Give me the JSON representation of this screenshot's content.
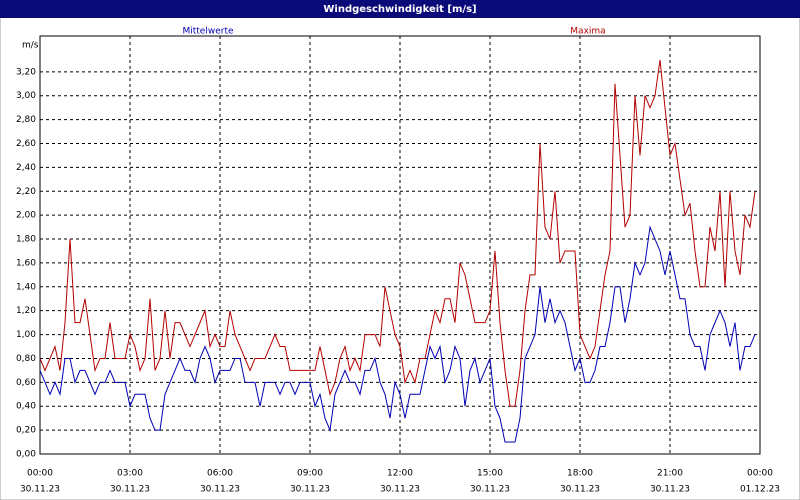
{
  "chart_data": {
    "type": "line",
    "title": "Windgeschwindigkeit [m/s]",
    "ylabel": "m/s",
    "x": [
      0,
      10,
      20,
      30,
      40,
      50,
      60,
      70,
      80,
      90,
      100,
      110,
      120,
      130,
      140,
      150,
      160,
      170,
      180,
      190,
      200,
      210,
      220,
      230,
      240,
      250,
      260,
      270,
      280,
      290,
      300,
      310,
      320,
      330,
      340,
      350,
      360,
      370,
      380,
      390,
      400,
      410,
      420,
      430,
      440,
      450,
      460,
      470,
      480,
      490,
      500,
      510,
      520,
      530,
      540,
      550,
      560,
      570,
      580,
      590,
      600,
      610,
      620,
      630,
      640,
      650,
      660,
      670,
      680,
      690,
      700,
      710,
      720,
      730,
      740,
      750,
      760,
      770,
      780,
      790,
      800,
      810,
      820,
      830,
      840,
      850,
      860,
      870,
      880,
      890,
      900,
      910,
      920,
      930,
      940,
      950,
      960,
      970,
      980,
      990,
      1000,
      1010,
      1020,
      1030,
      1040,
      1050,
      1060,
      1070,
      1080,
      1090,
      1100,
      1110,
      1120,
      1130,
      1140,
      1150,
      1160,
      1170,
      1180,
      1190,
      1200,
      1210,
      1220,
      1230,
      1240,
      1250,
      1260,
      1270,
      1280,
      1290,
      1300,
      1310,
      1320,
      1330,
      1340,
      1350,
      1360,
      1370,
      1380,
      1390,
      1400,
      1410,
      1420,
      1430
    ],
    "series": [
      {
        "name": "Mittelwerte",
        "color": "#0000b4",
        "values": [
          0.7,
          0.6,
          0.5,
          0.6,
          0.5,
          0.8,
          0.8,
          0.6,
          0.7,
          0.7,
          0.6,
          0.5,
          0.6,
          0.6,
          0.7,
          0.6,
          0.6,
          0.6,
          0.4,
          0.5,
          0.5,
          0.5,
          0.3,
          0.2,
          0.2,
          0.5,
          0.6,
          0.7,
          0.8,
          0.7,
          0.7,
          0.6,
          0.8,
          0.9,
          0.8,
          0.6,
          0.7,
          0.7,
          0.7,
          0.8,
          0.8,
          0.6,
          0.6,
          0.6,
          0.4,
          0.6,
          0.6,
          0.6,
          0.5,
          0.6,
          0.6,
          0.5,
          0.6,
          0.6,
          0.6,
          0.4,
          0.5,
          0.3,
          0.2,
          0.5,
          0.6,
          0.7,
          0.6,
          0.6,
          0.5,
          0.7,
          0.7,
          0.8,
          0.6,
          0.5,
          0.3,
          0.6,
          0.5,
          0.3,
          0.5,
          0.5,
          0.5,
          0.7,
          0.9,
          0.8,
          0.9,
          0.6,
          0.7,
          0.9,
          0.8,
          0.4,
          0.7,
          0.8,
          0.6,
          0.7,
          0.8,
          0.4,
          0.3,
          0.1,
          0.1,
          0.1,
          0.3,
          0.8,
          0.9,
          1.0,
          1.4,
          1.1,
          1.3,
          1.1,
          1.2,
          1.1,
          0.9,
          0.7,
          0.8,
          0.6,
          0.6,
          0.7,
          0.9,
          0.9,
          1.1,
          1.4,
          1.4,
          1.1,
          1.3,
          1.6,
          1.5,
          1.6,
          1.9,
          1.8,
          1.7,
          1.5,
          1.7,
          1.5,
          1.3,
          1.3,
          1.0,
          0.9,
          0.9,
          0.7,
          1.0,
          1.1,
          1.2,
          1.1,
          0.9,
          1.1,
          0.7,
          0.9,
          0.9,
          1.0
        ]
      },
      {
        "name": "Maxima",
        "color": "#b40000",
        "values": [
          0.8,
          0.7,
          0.8,
          0.9,
          0.7,
          1.1,
          1.8,
          1.1,
          1.1,
          1.3,
          1.0,
          0.7,
          0.8,
          0.8,
          1.1,
          0.8,
          0.8,
          0.8,
          1.0,
          0.9,
          0.7,
          0.8,
          1.3,
          0.7,
          0.8,
          1.2,
          0.8,
          1.1,
          1.1,
          1.0,
          0.9,
          1.0,
          1.1,
          1.2,
          0.9,
          1.0,
          0.9,
          0.9,
          1.2,
          1.0,
          0.9,
          0.8,
          0.7,
          0.8,
          0.8,
          0.8,
          0.9,
          1.0,
          0.9,
          0.9,
          0.7,
          0.7,
          0.7,
          0.7,
          0.7,
          0.7,
          0.9,
          0.7,
          0.5,
          0.6,
          0.8,
          0.9,
          0.7,
          0.8,
          0.7,
          1.0,
          1.0,
          1.0,
          0.9,
          1.4,
          1.2,
          1.0,
          0.9,
          0.6,
          0.7,
          0.6,
          0.8,
          0.8,
          1.0,
          1.2,
          1.1,
          1.3,
          1.3,
          1.1,
          1.6,
          1.5,
          1.3,
          1.1,
          1.1,
          1.1,
          1.2,
          1.7,
          1.1,
          0.7,
          0.4,
          0.4,
          0.7,
          1.2,
          1.5,
          1.5,
          2.6,
          1.9,
          1.8,
          2.2,
          1.6,
          1.7,
          1.7,
          1.7,
          1.0,
          0.9,
          0.8,
          0.9,
          1.2,
          1.5,
          1.7,
          3.1,
          2.5,
          1.9,
          2.0,
          3.0,
          2.5,
          3.0,
          2.9,
          3.0,
          3.3,
          2.9,
          2.5,
          2.6,
          2.3,
          2.0,
          2.1,
          1.7,
          1.4,
          1.4,
          1.9,
          1.7,
          2.2,
          1.4,
          2.2,
          1.7,
          1.5,
          2.0,
          1.9,
          2.2
        ]
      }
    ],
    "xlim": [
      0,
      1440
    ],
    "xticks": [
      {
        "value": 0,
        "label": "00:00",
        "date": "30.11.23"
      },
      {
        "value": 180,
        "label": "03:00",
        "date": "30.11.23"
      },
      {
        "value": 360,
        "label": "06:00",
        "date": "30.11.23"
      },
      {
        "value": 540,
        "label": "09:00",
        "date": "30.11.23"
      },
      {
        "value": 720,
        "label": "12:00",
        "date": "30.11.23"
      },
      {
        "value": 900,
        "label": "15:00",
        "date": "30.11.23"
      },
      {
        "value": 1080,
        "label": "18:00",
        "date": "30.11.23"
      },
      {
        "value": 1260,
        "label": "21:00",
        "date": "30.11.23"
      },
      {
        "value": 1440,
        "label": "00:00",
        "date": "01.12.23"
      }
    ],
    "ylim": [
      0,
      3.5
    ],
    "yticks": [
      {
        "value": 0,
        "label": "0,00"
      },
      {
        "value": 0.2,
        "label": "0,20"
      },
      {
        "value": 0.4,
        "label": "0,40"
      },
      {
        "value": 0.6,
        "label": "0,60"
      },
      {
        "value": 0.8,
        "label": "0,80"
      },
      {
        "value": 1.0,
        "label": "1,00"
      },
      {
        "value": 1.2,
        "label": "1,20"
      },
      {
        "value": 1.4,
        "label": "1,40"
      },
      {
        "value": 1.6,
        "label": "1,60"
      },
      {
        "value": 1.8,
        "label": "1,80"
      },
      {
        "value": 2.0,
        "label": "2,00"
      },
      {
        "value": 2.2,
        "label": "2,20"
      },
      {
        "value": 2.4,
        "label": "2,40"
      },
      {
        "value": 2.6,
        "label": "2,60"
      },
      {
        "value": 2.8,
        "label": "2,80"
      },
      {
        "value": 3.0,
        "label": "3,00"
      },
      {
        "value": 3.2,
        "label": "3,20"
      }
    ],
    "grid": true
  }
}
